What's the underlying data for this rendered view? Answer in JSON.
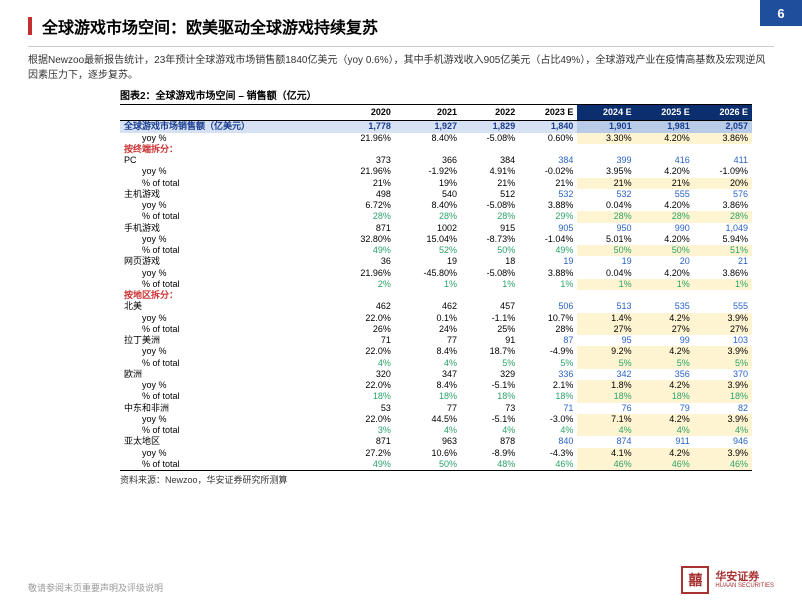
{
  "page": {
    "number": "6",
    "title": "全球游戏市场空间：欧美驱动全球游戏持续复苏"
  },
  "intro": "根据Newzoo最新报告统计，23年预计全球游戏市场销售额1840亿美元（yoy 0.6%），其中手机游戏收入905亿美元（占比49%），全球游戏产业在疫情高基数及宏观逆风因素压力下，逐步复苏。",
  "chart_label": "图表2：全球游戏市场空间 – 销售额（亿元）",
  "source": "资料来源：Newzoo，华安证券研究所测算",
  "footer": "敬请参阅末页重要声明及评级说明",
  "logo": {
    "cn": "华安证券",
    "en": "HUAAN SECURITIES"
  },
  "table": {
    "years": [
      "2020",
      "2021",
      "2022",
      "2023 E",
      "2024 E",
      "2025 E",
      "2026 E"
    ],
    "estcols": [
      false,
      false,
      false,
      false,
      true,
      true,
      true
    ],
    "blue2023": true,
    "rows": [
      {
        "type": "total",
        "label": "全球游戏市场销售额（亿美元）",
        "v": [
          "1,778",
          "1,927",
          "1,829",
          "1,840",
          "1,901",
          "1,981",
          "2,057"
        ]
      },
      {
        "type": "sub",
        "label": "yoy %",
        "v": [
          "21.96%",
          "8.40%",
          "-5.08%",
          "0.60%",
          "3.30%",
          "4.20%",
          "3.86%"
        ],
        "hl": [
          0,
          0,
          0,
          0,
          1,
          1,
          1
        ]
      },
      {
        "type": "section",
        "label": "按终端拆分：",
        "v": [
          "",
          "",
          "",
          "",
          "",
          "",
          ""
        ]
      },
      {
        "type": "cat",
        "label": "PC",
        "v": [
          "373",
          "366",
          "384",
          "384",
          "399",
          "416",
          "411"
        ]
      },
      {
        "type": "sub",
        "label": "yoy %",
        "v": [
          "21.96%",
          "-1.92%",
          "4.91%",
          "-0.02%",
          "3.95%",
          "4.20%",
          "-1.09%"
        ]
      },
      {
        "type": "sub",
        "label": "% of total",
        "v": [
          "21%",
          "19%",
          "21%",
          "21%",
          "21%",
          "21%",
          "20%"
        ],
        "hl": [
          0,
          0,
          0,
          0,
          1,
          1,
          1
        ]
      },
      {
        "type": "cat",
        "label": "主机游戏",
        "v": [
          "498",
          "540",
          "512",
          "532",
          "532",
          "555",
          "576"
        ]
      },
      {
        "type": "sub",
        "label": "yoy %",
        "v": [
          "6.72%",
          "8.40%",
          "-5.08%",
          "3.88%",
          "0.04%",
          "4.20%",
          "3.86%"
        ]
      },
      {
        "type": "sub",
        "label": "% of total",
        "v": [
          "28%",
          "28%",
          "28%",
          "29%",
          "28%",
          "28%",
          "28%"
        ],
        "teal": true,
        "hl": [
          0,
          0,
          0,
          0,
          1,
          1,
          1
        ]
      },
      {
        "type": "cat",
        "label": "手机游戏",
        "v": [
          "871",
          "1002",
          "915",
          "905",
          "950",
          "990",
          "1,049"
        ]
      },
      {
        "type": "sub",
        "label": "yoy %",
        "v": [
          "32.80%",
          "15.04%",
          "-8.73%",
          "-1.04%",
          "5.01%",
          "4.20%",
          "5.94%"
        ]
      },
      {
        "type": "sub",
        "label": "% of total",
        "v": [
          "49%",
          "52%",
          "50%",
          "49%",
          "50%",
          "50%",
          "51%"
        ],
        "teal": true,
        "hl": [
          0,
          0,
          0,
          0,
          1,
          1,
          1
        ]
      },
      {
        "type": "cat",
        "label": "网页游戏",
        "v": [
          "36",
          "19",
          "18",
          "19",
          "19",
          "20",
          "21"
        ]
      },
      {
        "type": "sub",
        "label": "yoy %",
        "v": [
          "21.96%",
          "-45.80%",
          "-5.08%",
          "3.88%",
          "0.04%",
          "4.20%",
          "3.86%"
        ]
      },
      {
        "type": "sub",
        "label": "% of total",
        "v": [
          "2%",
          "1%",
          "1%",
          "1%",
          "1%",
          "1%",
          "1%"
        ],
        "teal": true,
        "hl": [
          0,
          0,
          0,
          0,
          1,
          1,
          1
        ]
      },
      {
        "type": "section",
        "label": "按地区拆分：",
        "v": [
          "",
          "",
          "",
          "",
          "",
          "",
          ""
        ]
      },
      {
        "type": "cat",
        "label": "北美",
        "v": [
          "462",
          "462",
          "457",
          "506",
          "513",
          "535",
          "555"
        ]
      },
      {
        "type": "sub",
        "label": "yoy %",
        "v": [
          "22.0%",
          "0.1%",
          "-1.1%",
          "10.7%",
          "1.4%",
          "4.2%",
          "3.9%"
        ],
        "hl": [
          0,
          0,
          0,
          0,
          1,
          1,
          1
        ]
      },
      {
        "type": "sub",
        "label": "% of total",
        "v": [
          "26%",
          "24%",
          "25%",
          "28%",
          "27%",
          "27%",
          "27%"
        ],
        "hl": [
          0,
          0,
          0,
          0,
          1,
          1,
          1
        ]
      },
      {
        "type": "cat",
        "label": "拉丁美洲",
        "v": [
          "71",
          "77",
          "91",
          "87",
          "95",
          "99",
          "103"
        ]
      },
      {
        "type": "sub",
        "label": "yoy %",
        "v": [
          "22.0%",
          "8.4%",
          "18.7%",
          "-4.9%",
          "9.2%",
          "4.2%",
          "3.9%"
        ],
        "hl": [
          0,
          0,
          0,
          0,
          1,
          1,
          1
        ]
      },
      {
        "type": "sub",
        "label": "% of total",
        "v": [
          "4%",
          "4%",
          "5%",
          "5%",
          "5%",
          "5%",
          "5%"
        ],
        "teal": true,
        "hl": [
          0,
          0,
          0,
          0,
          1,
          1,
          1
        ]
      },
      {
        "type": "cat",
        "label": "欧洲",
        "v": [
          "320",
          "347",
          "329",
          "336",
          "342",
          "356",
          "370"
        ]
      },
      {
        "type": "sub",
        "label": "yoy %",
        "v": [
          "22.0%",
          "8.4%",
          "-5.1%",
          "2.1%",
          "1.8%",
          "4.2%",
          "3.9%"
        ],
        "hl": [
          0,
          0,
          0,
          0,
          1,
          1,
          1
        ]
      },
      {
        "type": "sub",
        "label": "% of total",
        "v": [
          "18%",
          "18%",
          "18%",
          "18%",
          "18%",
          "18%",
          "18%"
        ],
        "teal": true,
        "hl": [
          0,
          0,
          0,
          0,
          1,
          1,
          1
        ]
      },
      {
        "type": "cat",
        "label": "中东和非洲",
        "v": [
          "53",
          "77",
          "73",
          "71",
          "76",
          "79",
          "82"
        ]
      },
      {
        "type": "sub",
        "label": "yoy %",
        "v": [
          "22.0%",
          "44.5%",
          "-5.1%",
          "-3.0%",
          "7.1%",
          "4.2%",
          "3.9%"
        ],
        "hl": [
          0,
          0,
          0,
          0,
          1,
          1,
          1
        ]
      },
      {
        "type": "sub",
        "label": "% of total",
        "v": [
          "3%",
          "4%",
          "4%",
          "4%",
          "4%",
          "4%",
          "4%"
        ],
        "teal": true,
        "hl": [
          0,
          0,
          0,
          0,
          1,
          1,
          1
        ]
      },
      {
        "type": "cat",
        "label": "亚太地区",
        "v": [
          "871",
          "963",
          "878",
          "840",
          "874",
          "911",
          "946"
        ]
      },
      {
        "type": "sub",
        "label": "yoy %",
        "v": [
          "27.2%",
          "10.6%",
          "-8.9%",
          "-4.3%",
          "4.1%",
          "4.2%",
          "3.9%"
        ],
        "hl": [
          0,
          0,
          0,
          0,
          1,
          1,
          1
        ]
      },
      {
        "type": "sub",
        "label": "% of total",
        "v": [
          "49%",
          "50%",
          "48%",
          "46%",
          "46%",
          "46%",
          "46%"
        ],
        "teal": true,
        "hl": [
          0,
          0,
          0,
          0,
          1,
          1,
          1
        ]
      }
    ]
  }
}
